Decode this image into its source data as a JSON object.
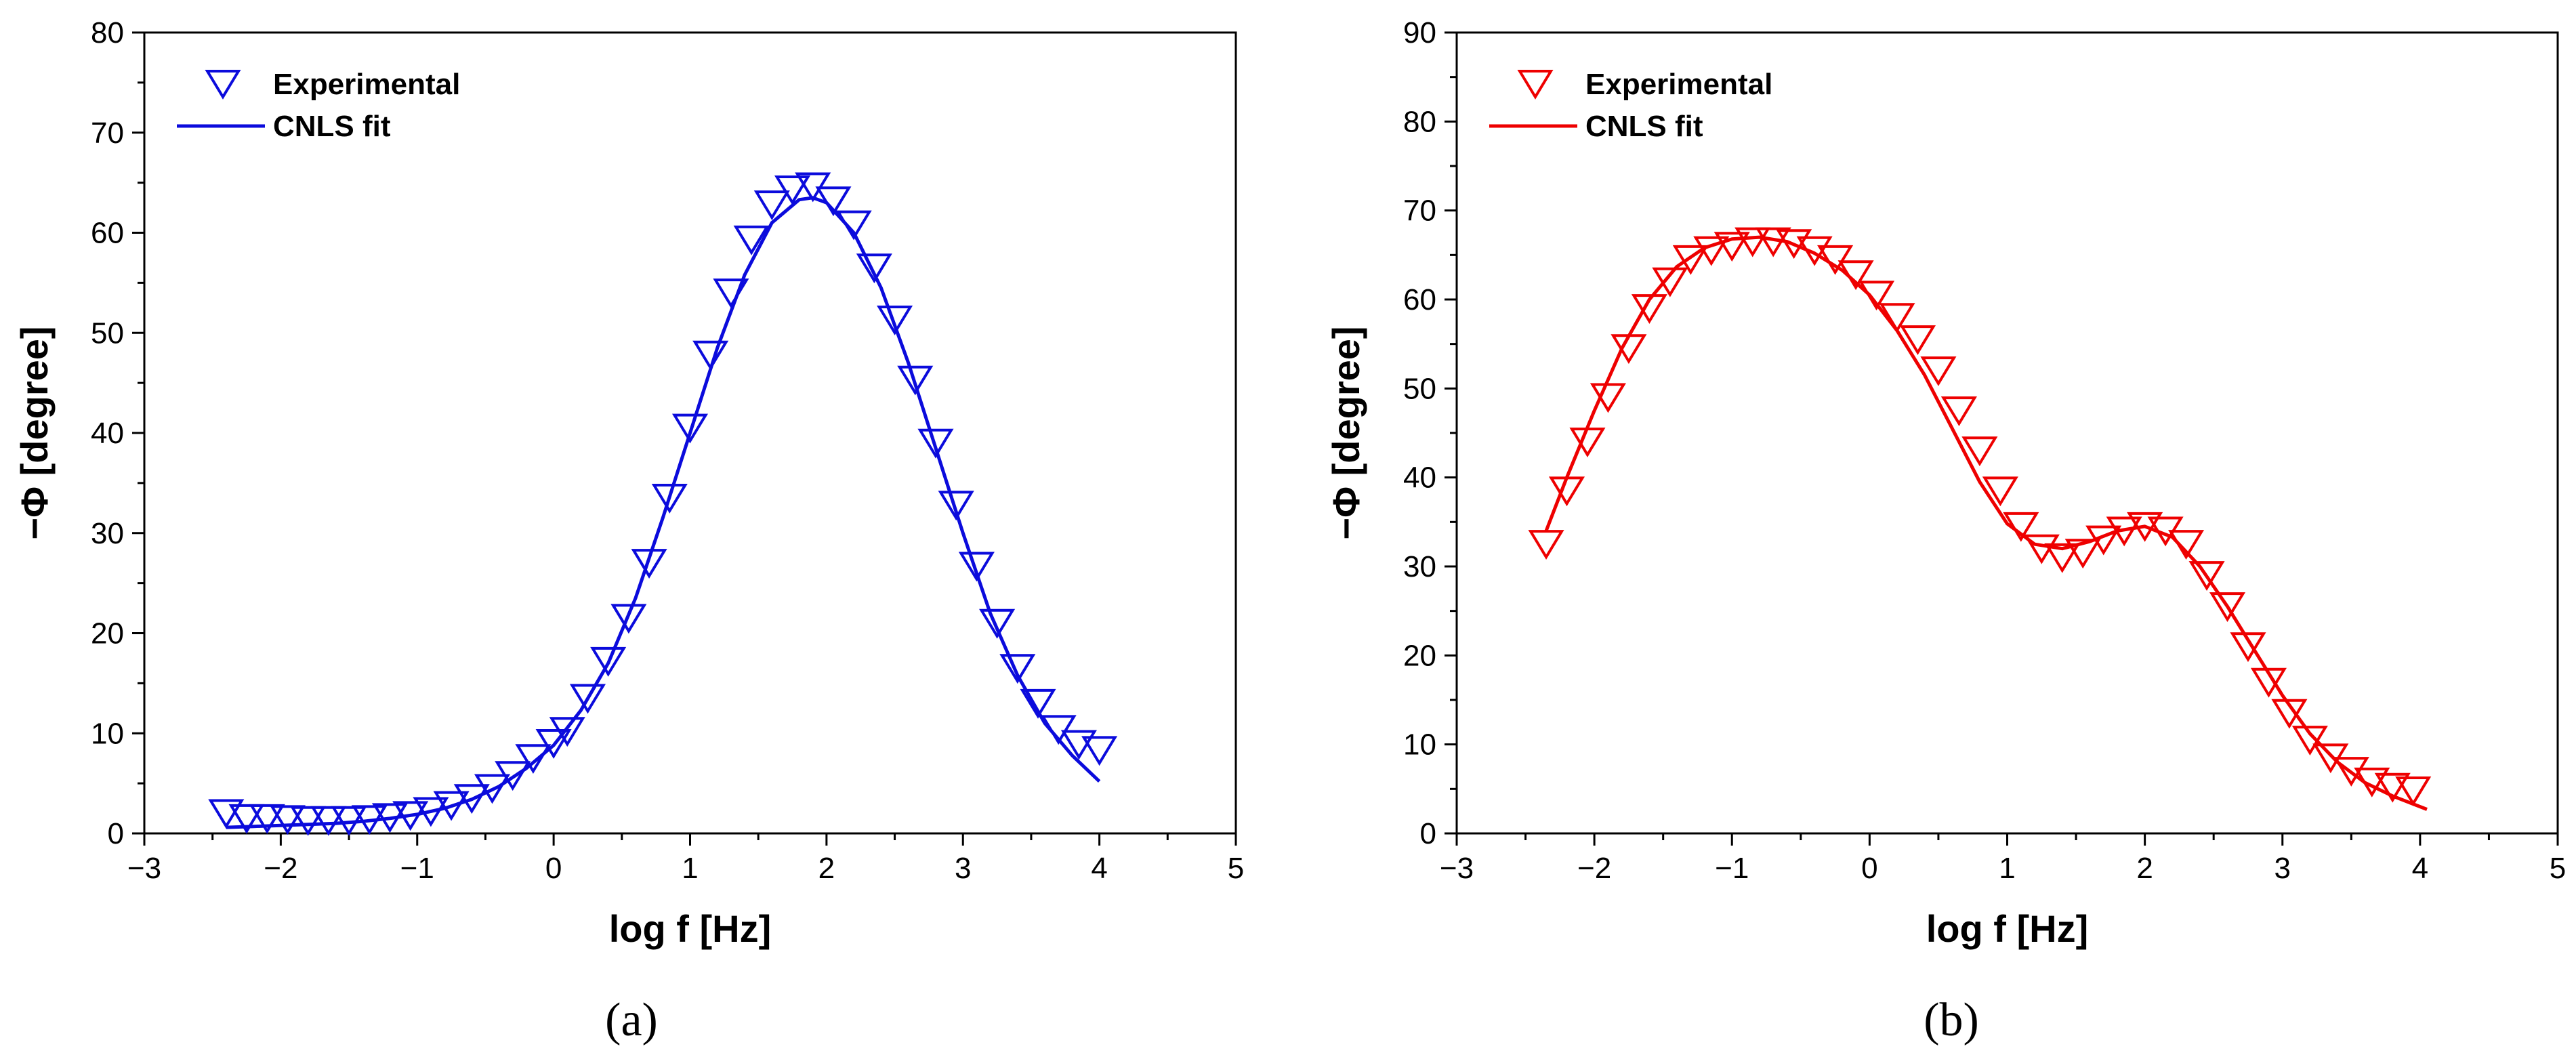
{
  "figure": {
    "panel_labels": [
      "(a)",
      "(b)"
    ]
  },
  "chart_data": [
    {
      "id": "a",
      "type": "scatter",
      "title": "",
      "xlabel": "log f [Hz]",
      "ylabel": "−Φ [degree]",
      "xlim": [
        -3,
        5
      ],
      "ylim": [
        0,
        80
      ],
      "xticks": [
        -3,
        -2,
        -1,
        0,
        1,
        2,
        3,
        4,
        5
      ],
      "yticks": [
        0,
        10,
        20,
        30,
        40,
        50,
        60,
        70,
        80
      ],
      "xtick_labels": [
        "−3",
        "−2",
        "−1",
        "0",
        "1",
        "2",
        "3",
        "4",
        "5"
      ],
      "ytick_labels": [
        "0",
        "10",
        "20",
        "30",
        "40",
        "50",
        "60",
        "70",
        "80"
      ],
      "legend": [
        "Experimental",
        "CNLS fit"
      ],
      "legend_position": "top-left",
      "color": "#0b0bdc",
      "series": [
        {
          "name": "Experimental",
          "kind": "marker",
          "marker": "down-triangle",
          "x": [
            -2.4,
            -2.25,
            -2.1,
            -1.95,
            -1.8,
            -1.65,
            -1.5,
            -1.35,
            -1.2,
            -1.05,
            -0.9,
            -0.75,
            -0.6,
            -0.45,
            -0.3,
            -0.15,
            0.0,
            0.1,
            0.25,
            0.4,
            0.55,
            0.7,
            0.85,
            1.0,
            1.15,
            1.3,
            1.45,
            1.6,
            1.75,
            1.9,
            2.05,
            2.2,
            2.35,
            2.5,
            2.65,
            2.8,
            2.95,
            3.1,
            3.25,
            3.4,
            3.55,
            3.7,
            3.85,
            4.0
          ],
          "y": [
            2.0,
            1.5,
            1.5,
            1.4,
            1.3,
            1.3,
            1.3,
            1.4,
            1.6,
            1.8,
            2.2,
            2.8,
            3.5,
            4.5,
            5.8,
            7.5,
            9.0,
            10.2,
            13.5,
            17.2,
            21.5,
            27.0,
            33.5,
            40.5,
            47.8,
            54.0,
            59.3,
            62.8,
            64.3,
            64.6,
            63.2,
            60.8,
            56.5,
            51.3,
            45.3,
            39.0,
            32.8,
            26.7,
            21.0,
            16.5,
            13.0,
            10.4,
            8.9,
            8.3
          ]
        },
        {
          "name": "CNLS fit",
          "kind": "line",
          "x": [
            -2.4,
            -2.2,
            -2.0,
            -1.8,
            -1.6,
            -1.4,
            -1.2,
            -1.0,
            -0.8,
            -0.6,
            -0.4,
            -0.2,
            0.0,
            0.2,
            0.4,
            0.6,
            0.8,
            1.0,
            1.2,
            1.4,
            1.6,
            1.8,
            1.9,
            2.0,
            2.2,
            2.4,
            2.6,
            2.8,
            3.0,
            3.2,
            3.4,
            3.6,
            3.8,
            4.0
          ],
          "y": [
            0.6,
            0.7,
            0.8,
            0.9,
            1.0,
            1.2,
            1.5,
            1.9,
            2.5,
            3.4,
            4.7,
            6.5,
            8.8,
            12.3,
            17.0,
            23.5,
            31.5,
            40.0,
            48.5,
            55.8,
            61.0,
            63.3,
            63.5,
            63.0,
            60.0,
            54.5,
            47.0,
            38.5,
            30.0,
            22.0,
            15.8,
            11.0,
            7.8,
            5.2
          ]
        }
      ]
    },
    {
      "id": "b",
      "type": "scatter",
      "title": "",
      "xlabel": "log f [Hz]",
      "ylabel": "−Φ [degree]",
      "xlim": [
        -3,
        5
      ],
      "ylim": [
        0,
        90
      ],
      "xticks": [
        -3,
        -2,
        -1,
        0,
        1,
        2,
        3,
        4,
        5
      ],
      "yticks": [
        0,
        10,
        20,
        30,
        40,
        50,
        60,
        70,
        80,
        90
      ],
      "xtick_labels": [
        "−3",
        "−2",
        "−1",
        "0",
        "1",
        "2",
        "3",
        "4",
        "5"
      ],
      "ytick_labels": [
        "0",
        "10",
        "20",
        "30",
        "40",
        "50",
        "60",
        "70",
        "80",
        "90"
      ],
      "legend": [
        "Experimental",
        "CNLS fit"
      ],
      "legend_position": "top-left",
      "color": "#ee0000",
      "series": [
        {
          "name": "Experimental",
          "kind": "marker",
          "marker": "down-triangle",
          "x": [
            -2.35,
            -2.2,
            -2.05,
            -1.9,
            -1.75,
            -1.6,
            -1.45,
            -1.3,
            -1.15,
            -1.0,
            -0.85,
            -0.7,
            -0.55,
            -0.4,
            -0.25,
            -0.1,
            0.05,
            0.2,
            0.35,
            0.5,
            0.65,
            0.8,
            0.95,
            1.1,
            1.25,
            1.4,
            1.55,
            1.7,
            1.85,
            2.0,
            2.15,
            2.3,
            2.45,
            2.6,
            2.75,
            2.9,
            3.05,
            3.2,
            3.35,
            3.5,
            3.65,
            3.8,
            3.95
          ],
          "y": [
            32.5,
            38.5,
            44.0,
            49.0,
            54.5,
            59.0,
            62.0,
            64.5,
            65.5,
            66.0,
            66.5,
            66.5,
            66.3,
            65.5,
            64.5,
            62.8,
            60.5,
            58.0,
            55.5,
            52.0,
            47.5,
            43.0,
            38.5,
            34.5,
            32.0,
            31.0,
            31.5,
            33.0,
            34.0,
            34.5,
            34.0,
            32.5,
            29.0,
            25.5,
            21.0,
            17.0,
            13.5,
            10.5,
            8.5,
            7.0,
            5.8,
            5.2,
            4.8
          ]
        },
        {
          "name": "CNLS fit",
          "kind": "line",
          "x": [
            -2.35,
            -2.2,
            -2.0,
            -1.8,
            -1.6,
            -1.4,
            -1.2,
            -1.0,
            -0.8,
            -0.6,
            -0.4,
            -0.2,
            0.0,
            0.2,
            0.4,
            0.6,
            0.8,
            1.0,
            1.2,
            1.4,
            1.6,
            1.8,
            2.0,
            2.2,
            2.4,
            2.6,
            2.8,
            3.0,
            3.2,
            3.4,
            3.6,
            3.8,
            4.05
          ],
          "y": [
            34.0,
            40.0,
            47.5,
            54.5,
            60.0,
            63.7,
            65.8,
            66.8,
            67.0,
            66.5,
            65.2,
            63.3,
            60.5,
            56.5,
            51.5,
            45.5,
            39.5,
            34.8,
            32.5,
            32.0,
            32.8,
            34.0,
            34.5,
            33.3,
            30.0,
            25.5,
            20.5,
            15.5,
            11.2,
            8.0,
            5.7,
            4.2,
            2.7
          ]
        }
      ]
    }
  ]
}
